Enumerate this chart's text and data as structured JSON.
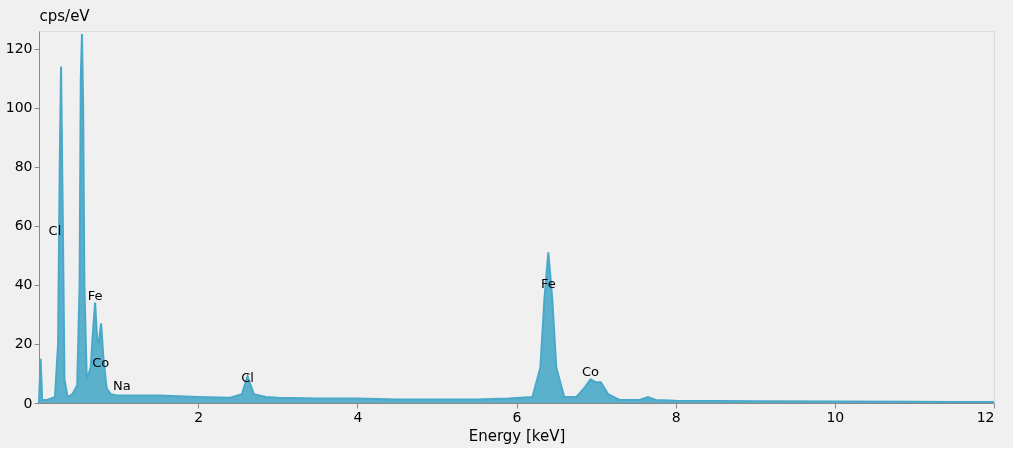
{
  "chart_data": {
    "type": "area",
    "xlabel": "Energy [keV]",
    "ylabel": "cps/eV",
    "x": [
      0.0,
      0.02,
      0.04,
      0.1,
      0.2,
      0.24,
      0.26,
      0.277,
      0.3,
      0.32,
      0.36,
      0.42,
      0.48,
      0.51,
      0.525,
      0.54,
      0.555,
      0.57,
      0.6,
      0.65,
      0.68,
      0.705,
      0.73,
      0.75,
      0.78,
      0.81,
      0.85,
      0.9,
      1.0,
      1.2,
      1.5,
      2.0,
      2.4,
      2.55,
      2.62,
      2.7,
      2.85,
      3.0,
      3.5,
      4.0,
      4.5,
      5.0,
      5.5,
      5.9,
      6.2,
      6.3,
      6.35,
      6.4,
      6.45,
      6.5,
      6.6,
      6.75,
      6.85,
      6.93,
      7.0,
      7.06,
      7.15,
      7.3,
      7.55,
      7.65,
      7.75,
      8.0,
      9.0,
      10.0,
      11.0,
      11.5,
      12.0
    ],
    "series": [
      {
        "color": "#4aa8c8",
        "values": [
          0,
          15,
          1,
          1,
          2,
          20,
          80,
          114,
          60,
          8,
          2,
          3,
          6,
          40,
          110,
          125,
          100,
          40,
          8,
          12,
          25,
          34,
          22,
          20,
          27,
          15,
          5,
          3,
          2.5,
          2.5,
          2.5,
          2,
          1.8,
          3,
          9,
          3,
          2,
          1.8,
          1.5,
          1.5,
          1.2,
          1.2,
          1.2,
          1.5,
          2,
          12,
          35,
          51,
          35,
          12,
          2,
          2,
          5,
          8,
          7,
          7,
          3,
          1,
          1,
          2,
          1,
          0.8,
          0.6,
          0.5,
          0.4,
          0.3,
          0.3
        ]
      }
    ],
    "xlim": [
      0,
      12
    ],
    "ylim": [
      0,
      126
    ],
    "xticks": [
      2,
      4,
      6,
      8,
      10,
      12
    ],
    "yticks": [
      0,
      20,
      40,
      60,
      80,
      100,
      120
    ],
    "grid": false,
    "annotations": [
      {
        "text": "Cl",
        "x": 0.2,
        "y": 55
      },
      {
        "text": "Fe",
        "x": 0.705,
        "y": 33
      },
      {
        "text": "Co",
        "x": 0.776,
        "y": 10
      },
      {
        "text": "Na",
        "x": 1.04,
        "y": 2.5
      },
      {
        "text": "Cl",
        "x": 2.62,
        "y": 5
      },
      {
        "text": "Fe",
        "x": 6.4,
        "y": 37
      },
      {
        "text": "Co",
        "x": 6.93,
        "y": 7
      }
    ]
  }
}
